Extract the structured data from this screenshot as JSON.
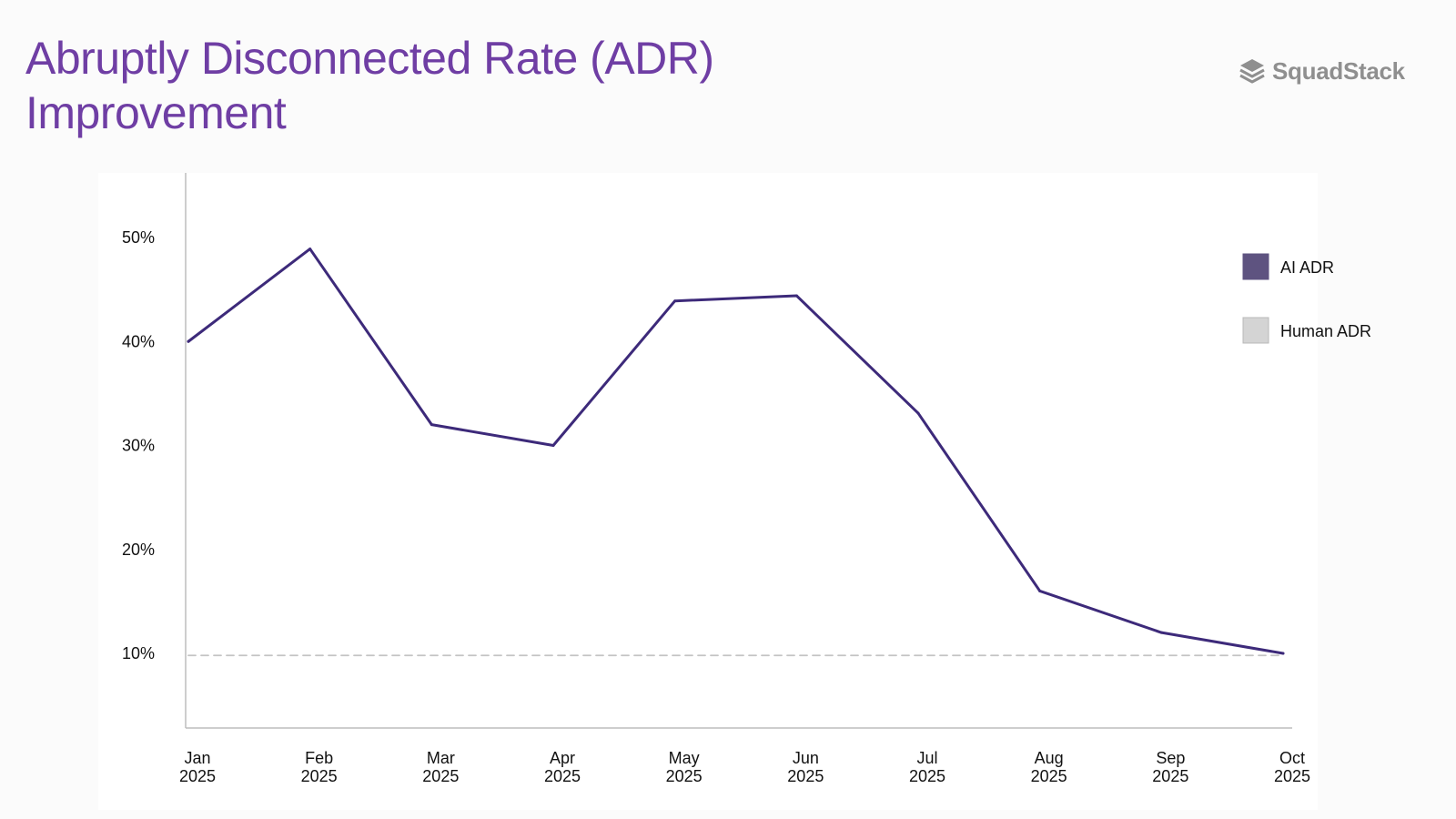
{
  "header": {
    "title_line1": "Abruptly Disconnected Rate (ADR)",
    "title_line2": "Improvement"
  },
  "brand": {
    "name": "SquadStack",
    "icon": "stacked-layers-icon"
  },
  "colors": {
    "title": "#6f3ea4",
    "ai_line": "#3d2a7a",
    "ai_legend": "#5e5380",
    "human_legend": "#d4d4d4",
    "human_line": "#c4c4c4",
    "axis": "#bdbdbd",
    "brand": "#8f8f8f"
  },
  "chart_data": {
    "type": "line",
    "title": "Abruptly Disconnected Rate (ADR) Improvement",
    "xlabel": "",
    "ylabel": "",
    "categories": [
      [
        "Jan",
        "2025"
      ],
      [
        "Feb",
        "2025"
      ],
      [
        "Mar",
        "2025"
      ],
      [
        "Apr",
        "2025"
      ],
      [
        "May",
        "2025"
      ],
      [
        "Jun",
        "2025"
      ],
      [
        "Jul",
        "2025"
      ],
      [
        "Aug",
        "2025"
      ],
      [
        "Sep",
        "2025"
      ],
      [
        "Oct",
        "2025"
      ]
    ],
    "yticks": [
      10,
      20,
      30,
      40,
      50
    ],
    "ytick_labels": [
      "10%",
      "20%",
      "30%",
      "40%",
      "50%"
    ],
    "ylim": [
      2.5,
      55
    ],
    "series": [
      {
        "name": "AI ADR",
        "style": "solid",
        "values": [
          40,
          48.9,
          32,
          30,
          43.9,
          44.4,
          33.1,
          16,
          12,
          10
        ]
      },
      {
        "name": "Human ADR",
        "style": "dashed",
        "values": [
          9.8,
          9.8,
          9.8,
          9.8,
          9.8,
          9.8,
          9.8,
          9.8,
          9.8,
          9.8
        ]
      }
    ],
    "legend": {
      "position": "right",
      "entries": [
        "AI ADR",
        "Human ADR"
      ]
    },
    "grid": false
  }
}
